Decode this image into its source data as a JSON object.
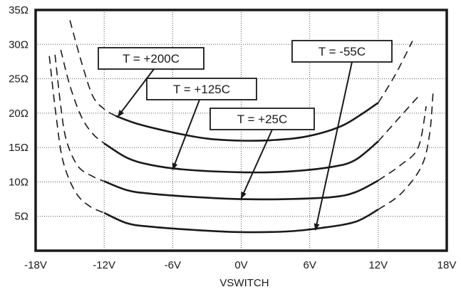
{
  "chart_data": {
    "type": "line",
    "title": "",
    "xlabel": "VSWITCH",
    "ylabel": "",
    "xlim": [
      -18,
      18
    ],
    "ylim": [
      0,
      35
    ],
    "x_ticks": [
      -18,
      -12,
      -6,
      0,
      6,
      12,
      18
    ],
    "x_tick_labels": [
      "-18V",
      "-12V",
      "-6V",
      "0V",
      "6V",
      "12V",
      "18V"
    ],
    "y_ticks": [
      5,
      10,
      15,
      20,
      25,
      30,
      35
    ],
    "y_tick_labels": [
      "5Ω",
      "10Ω",
      "15Ω",
      "20Ω",
      "25Ω",
      "30Ω",
      "35Ω"
    ],
    "grid": "dotted",
    "legend": "annotations",
    "series": [
      {
        "name": "T = +200C",
        "solid": [
          [
            -11,
            19.6
          ],
          [
            -9,
            18.4
          ],
          [
            -6,
            17.2
          ],
          [
            -3,
            16.3
          ],
          [
            0,
            16.0
          ],
          [
            3,
            16.1
          ],
          [
            6,
            16.7
          ],
          [
            9,
            18.3
          ],
          [
            12,
            21.5
          ]
        ],
        "dash_left": [
          [
            -15,
            33.5
          ],
          [
            -14,
            27.5
          ],
          [
            -13,
            22.5
          ],
          [
            -12,
            20.6
          ],
          [
            -11,
            19.6
          ]
        ],
        "dash_right": [
          [
            12,
            21.5
          ],
          [
            13.5,
            25.6
          ],
          [
            15,
            30.5
          ]
        ]
      },
      {
        "name": "T = +125C",
        "solid": [
          [
            -12,
            15.6
          ],
          [
            -10,
            13.5
          ],
          [
            -8,
            12.5
          ],
          [
            -5,
            11.8
          ],
          [
            0,
            11.4
          ],
          [
            4,
            11.5
          ],
          [
            8,
            12.2
          ],
          [
            10,
            13.2
          ],
          [
            12,
            15.9
          ]
        ],
        "dash_left": [
          [
            -15.8,
            29.2
          ],
          [
            -15,
            24
          ],
          [
            -14,
            19.5
          ],
          [
            -13,
            17
          ],
          [
            -12,
            15.6
          ]
        ],
        "dash_right": [
          [
            12,
            15.9
          ],
          [
            13.5,
            18.7
          ],
          [
            15.5,
            22.4
          ]
        ]
      },
      {
        "name": "T = +25C",
        "solid": [
          [
            -12,
            10.1
          ],
          [
            -10,
            8.8
          ],
          [
            -8,
            8.3
          ],
          [
            -4,
            7.8
          ],
          [
            0,
            7.5
          ],
          [
            4,
            7.5
          ],
          [
            8,
            7.8
          ],
          [
            10,
            8.5
          ],
          [
            12,
            10.2
          ]
        ],
        "dash_left": [
          [
            -16.3,
            28.5
          ],
          [
            -15.8,
            21
          ],
          [
            -15.3,
            16
          ],
          [
            -14.3,
            12.3
          ],
          [
            -13,
            10.8
          ],
          [
            -12,
            10.1
          ]
        ],
        "dash_right": [
          [
            12,
            10.2
          ],
          [
            14,
            12.5
          ],
          [
            15.5,
            15
          ],
          [
            16.2,
            21
          ]
        ]
      },
      {
        "name": "T = -55C",
        "solid": [
          [
            -12,
            5.5
          ],
          [
            -10,
            4.0
          ],
          [
            -8,
            3.5
          ],
          [
            -4,
            3.0
          ],
          [
            0,
            2.7
          ],
          [
            4,
            2.8
          ],
          [
            7,
            3.3
          ],
          [
            10,
            4.2
          ],
          [
            12,
            6.0
          ]
        ],
        "dash_left": [
          [
            -16.8,
            28.3
          ],
          [
            -16.2,
            19.5
          ],
          [
            -15.6,
            13
          ],
          [
            -14.5,
            8.5
          ],
          [
            -13.3,
            6.5
          ],
          [
            -12,
            5.5
          ]
        ],
        "dash_right": [
          [
            12,
            6.0
          ],
          [
            14,
            8.3
          ],
          [
            15.8,
            12.3
          ],
          [
            16.5,
            17
          ],
          [
            16.8,
            23
          ]
        ]
      }
    ],
    "annotations": [
      {
        "text": "T = +200C",
        "series": 0,
        "target": [
          -10.8,
          19.5
        ]
      },
      {
        "text": "T = +125C",
        "series": 1,
        "target": [
          -6.0,
          11.8
        ]
      },
      {
        "text": "T = +25C",
        "series": 2,
        "target": [
          0.0,
          7.6
        ]
      },
      {
        "text": "T = -55C",
        "series": 3,
        "target": [
          6.5,
          3.0
        ]
      }
    ]
  }
}
